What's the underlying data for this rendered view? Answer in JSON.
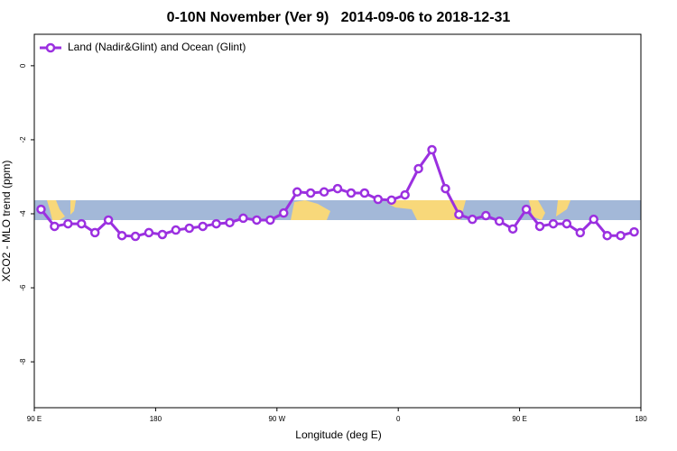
{
  "chart_data": {
    "type": "line",
    "title": "0-10N November (Ver 9)   2014-09-06 to 2018-12-31",
    "x_label": "Longitude (deg E)",
    "y_label": "XCO2 - MLO trend (ppm)",
    "xlim": [
      90,
      540
    ],
    "ylim": [
      -9.24,
      0.85
    ],
    "xticks": [
      {
        "value": 90,
        "label": "90 E"
      },
      180,
      {
        "value": 270,
        "label": "90 W"
      },
      {
        "value": 360,
        "label": "0"
      },
      {
        "value": 450,
        "label": "90 E"
      },
      {
        "value": 540,
        "label": "180"
      }
    ],
    "yticks": [
      0,
      -2,
      -4,
      -6,
      -8
    ],
    "legend": "top-left",
    "x": [
      95,
      105,
      115,
      125,
      135,
      145,
      155,
      165,
      175,
      185,
      195,
      205,
      215,
      225,
      235,
      245,
      255,
      265,
      275,
      285,
      295,
      305,
      315,
      325,
      335,
      345,
      355,
      365,
      375,
      385,
      395,
      405,
      415,
      425,
      435,
      445,
      455,
      465,
      475,
      485,
      495,
      505,
      515,
      525,
      535
    ],
    "series": [
      {
        "name": "Land (Nadir&Glint) and Ocean (Glint)",
        "color": "#9b30e0",
        "values": [
          -3.88,
          -4.34,
          -4.27,
          -4.27,
          -4.51,
          -4.17,
          -4.59,
          -4.61,
          -4.51,
          -4.56,
          -4.44,
          -4.39,
          -4.34,
          -4.27,
          -4.24,
          -4.12,
          -4.17,
          -4.17,
          -3.98,
          -3.41,
          -3.44,
          -3.41,
          -3.32,
          -3.44,
          -3.44,
          -3.61,
          -3.63,
          -3.49,
          -2.78,
          -2.27,
          -3.32,
          -4.02,
          -4.15,
          -4.05,
          -4.2,
          -4.41,
          -3.88,
          -4.34,
          -4.27,
          -4.27,
          -4.51,
          -4.15,
          -4.59,
          -4.59,
          -4.49
        ]
      }
    ]
  }
}
